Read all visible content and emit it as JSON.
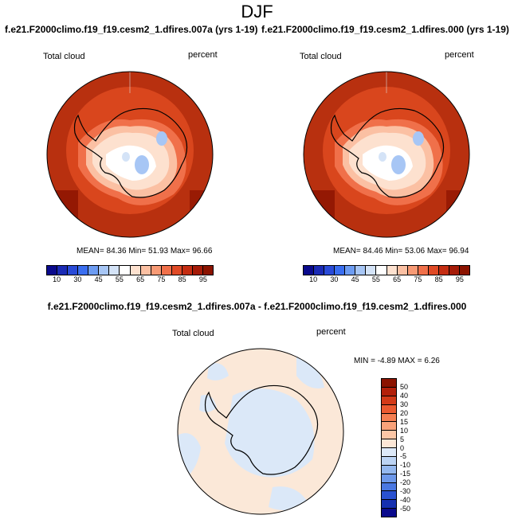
{
  "figure_title": "DJF",
  "top_left": {
    "case_title": "f.e21.F2000climo.f19_f19.cesm2_1.dfires.007a (yrs 1-19)",
    "variable": "Total cloud",
    "units": "percent",
    "stats": "MEAN=  84.36   Min=   51.93   Max=   96.66"
  },
  "top_right": {
    "case_title": "f.e21.F2000climo.f19_f19.cesm2_1.dfires.000 (yrs 1-19)",
    "variable": "Total cloud",
    "units": "percent",
    "stats": "MEAN=  84.46   Min=   53.06   Max=   96.94"
  },
  "diff": {
    "case_title": "f.e21.F2000climo.f19_f19.cesm2_1.dfires.007a - f.e21.F2000climo.f19_f19.cesm2_1.dfires.000",
    "variable": "Total cloud",
    "units": "percent",
    "stats": "MIN =  -4.89  MAX =   6.26"
  },
  "colorbar_abs": {
    "tick_labels": [
      "10",
      "30",
      "45",
      "55",
      "65",
      "75",
      "85",
      "95"
    ],
    "colors": [
      "#0a0a8c",
      "#1b2bb5",
      "#2a4bd8",
      "#3a6ef0",
      "#6d9cf2",
      "#a7c6f5",
      "#d4e3f7",
      "#ffffff",
      "#fde1cf",
      "#fbc0a3",
      "#f79a75",
      "#f0704a",
      "#e04a26",
      "#c42d12",
      "#a51b08",
      "#8b1300"
    ]
  },
  "colorbar_diff": {
    "tick_labels": [
      "50",
      "40",
      "30",
      "20",
      "15",
      "10",
      "5",
      "0",
      "-5",
      "-10",
      "-15",
      "-20",
      "-30",
      "-40",
      "-50"
    ],
    "colors": [
      "#8b1300",
      "#b3200a",
      "#d33a18",
      "#eb5a30",
      "#f57f52",
      "#f9a27a",
      "#fcc6a6",
      "#fde7d6",
      "#dde9f8",
      "#bcd4f4",
      "#94b8ef",
      "#6d98ea",
      "#4a78e2",
      "#2a52d1",
      "#1530b0",
      "#0a0a8c"
    ]
  },
  "map_colors": {
    "abs_background": "#b8300f",
    "abs_band": "#d9461d",
    "diff_background": "#fbe8d8",
    "diff_patch": "#dbe8f8",
    "coastline": "#000000"
  },
  "map_icons": [
    "antarctica-polar-map"
  ]
}
